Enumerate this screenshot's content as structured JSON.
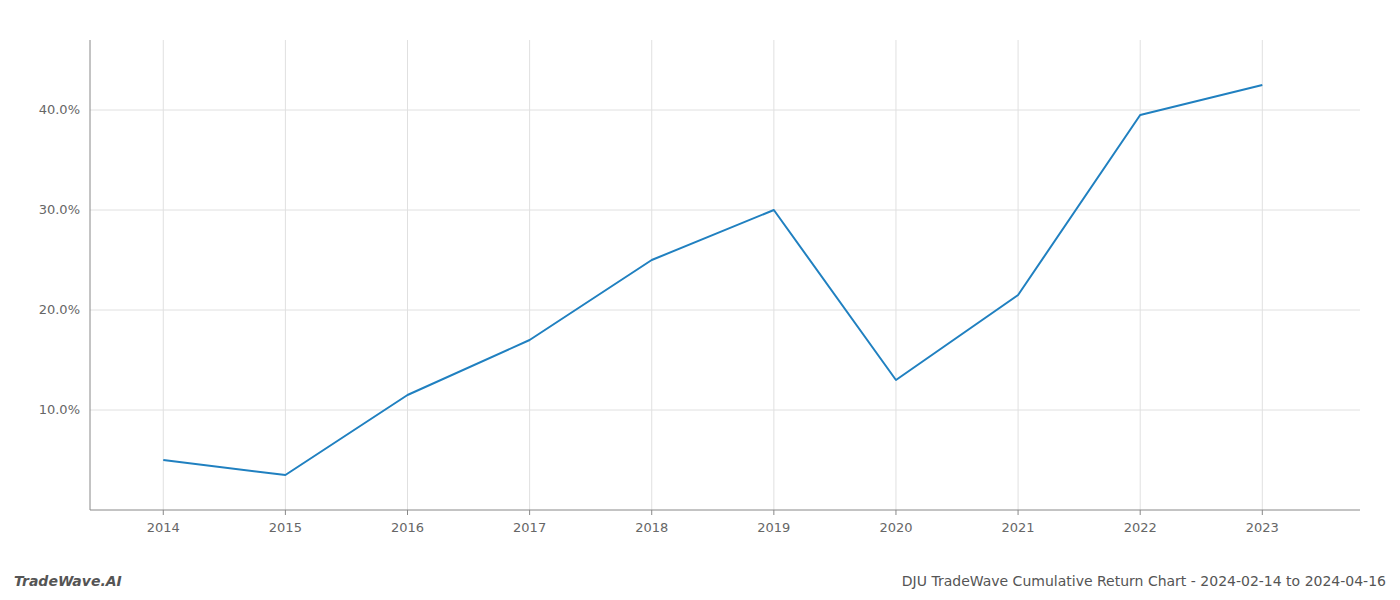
{
  "chart_data": {
    "type": "line",
    "title": "DJU TradeWave Cumulative Return Chart - 2024-02-14 to 2024-04-16",
    "annotations": [
      "TradeWave.AI"
    ],
    "x": [
      2014,
      2015,
      2016,
      2017,
      2018,
      2019,
      2020,
      2021,
      2022,
      2023
    ],
    "values": [
      5.0,
      3.5,
      11.5,
      17.0,
      25.0,
      30.0,
      13.0,
      21.5,
      39.5,
      42.5
    ],
    "color": "#2080c0",
    "xlim": [
      2013.4,
      2023.8
    ],
    "ylim": [
      0,
      47
    ],
    "xticks": [
      2014,
      2015,
      2016,
      2017,
      2018,
      2019,
      2020,
      2021,
      2022,
      2023
    ],
    "yticks": [
      {
        "value": 10.0,
        "label": "10.0%"
      },
      {
        "value": 20.0,
        "label": "20.0%"
      },
      {
        "value": 30.0,
        "label": "30.0%"
      },
      {
        "value": 40.0,
        "label": "40.0%"
      }
    ],
    "grid": true
  }
}
